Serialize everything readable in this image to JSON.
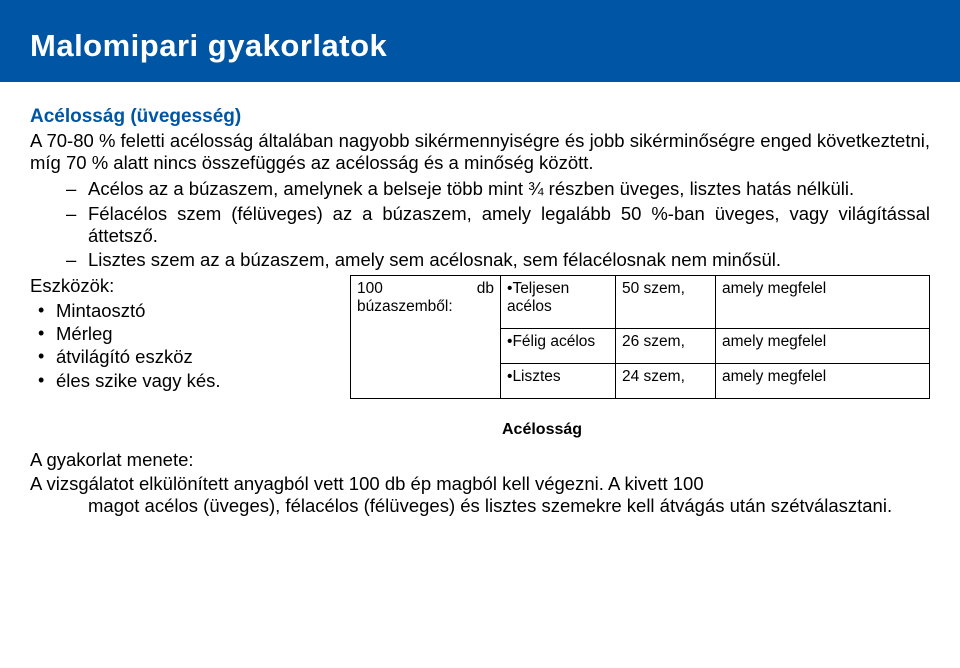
{
  "header": {
    "title": "Malomipari gyakorlatok"
  },
  "section": {
    "title": "Acélosság (üvegesség)"
  },
  "intro": "A 70-80 % feletti acélosság általában nagyobb sikérmennyiségre és jobb sikérminőségre enged következtetni, míg 70 % alatt nincs összefüggés az acélosság és a minőség között.",
  "defs": [
    "Acélos az a búzaszem, amelynek a belseje több mint ¾ részben üveges, lisztes hatás nélküli.",
    "Félacélos szem (félüveges) az a búzaszem, amely legalább 50 %-ban üveges, vagy világítással áttetsző.",
    "Lisztes szem az a búzaszem, amely sem acélosnak, sem félacélosnak nem minősül."
  ],
  "tools": {
    "heading": "Eszközök:",
    "items": [
      "Mintaosztó",
      "Mérleg",
      "átvilágító eszköz",
      "éles szike vagy kés."
    ]
  },
  "table": {
    "col1a": "100",
    "col1b": "db",
    "col1c": "búzaszemből:",
    "rows": [
      {
        "c2": "Teljesen acélos",
        "c3": "50 szem,",
        "c4": "amely megfelel"
      },
      {
        "c2": "Félig acélos",
        "c3": "26 szem,",
        "c4": "amely megfelel"
      },
      {
        "c2": "Lisztes",
        "c3": "24 szem,",
        "c4": "amely megfelel"
      }
    ]
  },
  "mid": {
    "title": "Acélosság"
  },
  "procedure": {
    "heading": "A gyakorlat menete:",
    "line1": "A vizsgálatot elkülönített anyagból vett 100 db ép magból kell végezni. A kivett 100",
    "line2": "magot acélos (üveges), félacélos (félüveges) és lisztes szemekre kell átvágás után szétválasztani."
  }
}
